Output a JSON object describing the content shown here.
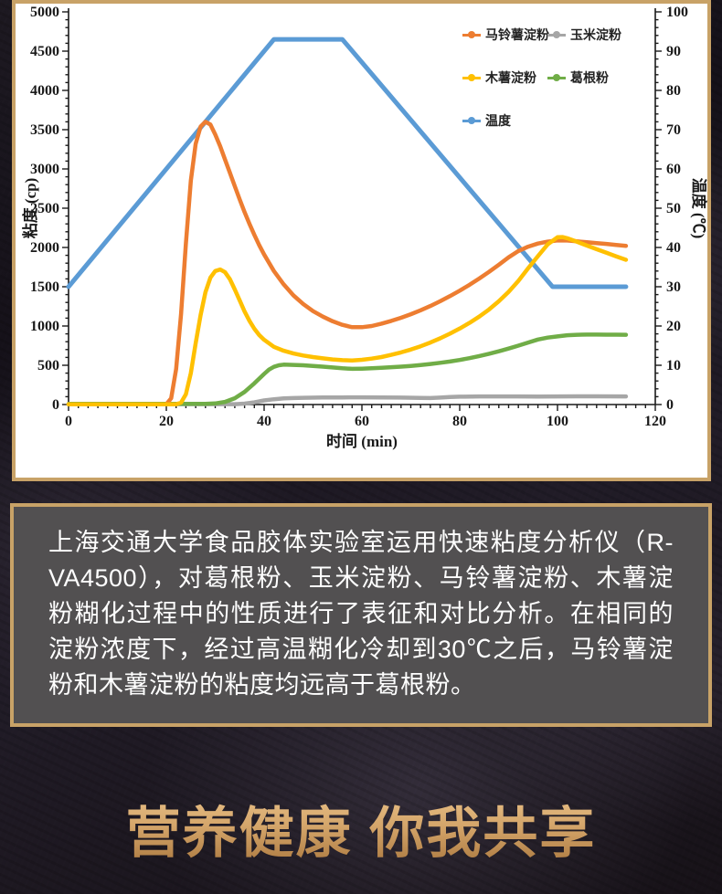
{
  "description": {
    "text": "上海交通大学食品胶体实验室运用快速粘度分析仪（R-VA4500），对葛根粉、玉米淀粉、马铃薯淀粉、木薯淀粉糊化过程中的性质进行了表征和对比分析。在相同的淀粉浓度下，经过高温糊化冷却到30℃之后，马铃薯淀粉和木薯淀粉的粘度均远高于葛根粉。"
  },
  "slogan": {
    "text": "营养健康 你我共享"
  },
  "theme": {
    "border_gold": "#c8a267",
    "textbox_bg": "#525051",
    "slogan_top": "#ecc48b",
    "slogan_mid": "#d3a469",
    "slogan_bottom": "#a9763d",
    "chart_bg": "#ffffff",
    "axis_color": "#1a1a1a"
  },
  "chart_data": {
    "type": "line",
    "title": "",
    "xlabel": "时间 (min)",
    "ylabel_left": "粘度 (cp)",
    "ylabel_right": "温度 (℃)",
    "x_range": [
      0,
      120
    ],
    "x_major": 20,
    "x_minor": 2,
    "y_left_range": [
      0,
      5000
    ],
    "y_left_major": 500,
    "y_left_minor": 100,
    "y_right_range": [
      0,
      100
    ],
    "y_right_major": 10,
    "y_right_minor": 2,
    "grid": false,
    "legend_position": "inside-top-right",
    "legend_order": [
      "马铃薯淀粉",
      "玉米淀粉",
      "木薯淀粉",
      "葛根粉",
      "温度"
    ],
    "series": [
      {
        "name": "温度",
        "axis": "right",
        "color": "#5B9BD5",
        "width": 5,
        "points": [
          [
            0,
            30
          ],
          [
            42,
            93
          ],
          [
            56,
            93
          ],
          [
            99,
            30
          ],
          [
            114,
            30
          ]
        ]
      },
      {
        "name": "玉米淀粉",
        "axis": "left",
        "color": "#A6A6A6",
        "width": 4.5,
        "points": [
          [
            0,
            5
          ],
          [
            34,
            5
          ],
          [
            36,
            12
          ],
          [
            38,
            28
          ],
          [
            40,
            52
          ],
          [
            42,
            68
          ],
          [
            44,
            78
          ],
          [
            46,
            83
          ],
          [
            48,
            86
          ],
          [
            52,
            89
          ],
          [
            56,
            91
          ],
          [
            60,
            92
          ],
          [
            64,
            91
          ],
          [
            68,
            88
          ],
          [
            72,
            84
          ],
          [
            74,
            82
          ],
          [
            76,
            88
          ],
          [
            78,
            95
          ],
          [
            80,
            100
          ],
          [
            84,
            103
          ],
          [
            88,
            104
          ],
          [
            92,
            104
          ],
          [
            96,
            101
          ],
          [
            100,
            104
          ],
          [
            104,
            105
          ],
          [
            108,
            105
          ],
          [
            114,
            104
          ]
        ]
      },
      {
        "name": "葛根粉",
        "axis": "left",
        "color": "#70AD47",
        "width": 4.5,
        "points": [
          [
            0,
            8
          ],
          [
            28,
            8
          ],
          [
            30,
            14
          ],
          [
            32,
            34
          ],
          [
            34,
            80
          ],
          [
            36,
            160
          ],
          [
            38,
            270
          ],
          [
            40,
            390
          ],
          [
            41,
            445
          ],
          [
            42,
            480
          ],
          [
            43,
            500
          ],
          [
            44,
            508
          ],
          [
            46,
            505
          ],
          [
            48,
            500
          ],
          [
            50,
            492
          ],
          [
            52,
            483
          ],
          [
            54,
            472
          ],
          [
            56,
            462
          ],
          [
            58,
            455
          ],
          [
            60,
            457
          ],
          [
            62,
            462
          ],
          [
            64,
            468
          ],
          [
            66,
            475
          ],
          [
            68,
            483
          ],
          [
            70,
            492
          ],
          [
            72,
            503
          ],
          [
            74,
            516
          ],
          [
            76,
            531
          ],
          [
            78,
            548
          ],
          [
            80,
            568
          ],
          [
            82,
            591
          ],
          [
            84,
            617
          ],
          [
            86,
            646
          ],
          [
            88,
            678
          ],
          [
            90,
            713
          ],
          [
            92,
            750
          ],
          [
            94,
            790
          ],
          [
            96,
            828
          ],
          [
            98,
            852
          ],
          [
            100,
            868
          ],
          [
            102,
            882
          ],
          [
            104,
            888
          ],
          [
            106,
            891
          ],
          [
            108,
            891
          ],
          [
            110,
            890
          ],
          [
            112,
            889
          ],
          [
            114,
            888
          ]
        ]
      },
      {
        "name": "马铃薯淀粉",
        "axis": "left",
        "color": "#ED7D31",
        "width": 4.5,
        "points": [
          [
            0,
            3
          ],
          [
            20,
            3
          ],
          [
            21,
            80
          ],
          [
            22,
            450
          ],
          [
            23,
            1150
          ],
          [
            24,
            2050
          ],
          [
            25,
            2850
          ],
          [
            26,
            3320
          ],
          [
            27,
            3540
          ],
          [
            28,
            3600
          ],
          [
            29,
            3565
          ],
          [
            30,
            3440
          ],
          [
            31,
            3290
          ],
          [
            32,
            3120
          ],
          [
            33,
            2950
          ],
          [
            34,
            2780
          ],
          [
            35,
            2610
          ],
          [
            36,
            2450
          ],
          [
            37,
            2300
          ],
          [
            38,
            2160
          ],
          [
            39,
            2030
          ],
          [
            40,
            1910
          ],
          [
            42,
            1700
          ],
          [
            44,
            1530
          ],
          [
            46,
            1390
          ],
          [
            48,
            1280
          ],
          [
            50,
            1190
          ],
          [
            52,
            1120
          ],
          [
            54,
            1060
          ],
          [
            56,
            1015
          ],
          [
            58,
            985
          ],
          [
            60,
            985
          ],
          [
            62,
            1000
          ],
          [
            64,
            1030
          ],
          [
            66,
            1065
          ],
          [
            68,
            1105
          ],
          [
            70,
            1150
          ],
          [
            72,
            1200
          ],
          [
            74,
            1255
          ],
          [
            76,
            1315
          ],
          [
            78,
            1380
          ],
          [
            80,
            1450
          ],
          [
            82,
            1525
          ],
          [
            84,
            1605
          ],
          [
            86,
            1690
          ],
          [
            88,
            1780
          ],
          [
            90,
            1875
          ],
          [
            92,
            1955
          ],
          [
            94,
            2010
          ],
          [
            96,
            2050
          ],
          [
            98,
            2075
          ],
          [
            100,
            2090
          ],
          [
            102,
            2088
          ],
          [
            104,
            2078
          ],
          [
            106,
            2066
          ],
          [
            108,
            2055
          ],
          [
            110,
            2045
          ],
          [
            112,
            2032
          ],
          [
            114,
            2020
          ]
        ]
      },
      {
        "name": "木薯淀粉",
        "axis": "left",
        "color": "#FFC000",
        "width": 4.5,
        "points": [
          [
            0,
            2
          ],
          [
            22,
            2
          ],
          [
            23,
            25
          ],
          [
            24,
            130
          ],
          [
            25,
            400
          ],
          [
            26,
            780
          ],
          [
            27,
            1140
          ],
          [
            28,
            1430
          ],
          [
            29,
            1615
          ],
          [
            30,
            1700
          ],
          [
            31,
            1720
          ],
          [
            32,
            1685
          ],
          [
            33,
            1595
          ],
          [
            34,
            1465
          ],
          [
            35,
            1325
          ],
          [
            36,
            1185
          ],
          [
            37,
            1065
          ],
          [
            38,
            965
          ],
          [
            39,
            885
          ],
          [
            40,
            825
          ],
          [
            42,
            735
          ],
          [
            44,
            685
          ],
          [
            46,
            650
          ],
          [
            48,
            625
          ],
          [
            50,
            605
          ],
          [
            52,
            588
          ],
          [
            54,
            575
          ],
          [
            56,
            565
          ],
          [
            58,
            562
          ],
          [
            60,
            570
          ],
          [
            62,
            585
          ],
          [
            64,
            605
          ],
          [
            66,
            632
          ],
          [
            68,
            664
          ],
          [
            70,
            700
          ],
          [
            72,
            742
          ],
          [
            74,
            790
          ],
          [
            76,
            843
          ],
          [
            78,
            902
          ],
          [
            80,
            968
          ],
          [
            82,
            1040
          ],
          [
            84,
            1120
          ],
          [
            86,
            1210
          ],
          [
            88,
            1315
          ],
          [
            90,
            1435
          ],
          [
            92,
            1575
          ],
          [
            94,
            1735
          ],
          [
            96,
            1890
          ],
          [
            98,
            2040
          ],
          [
            100,
            2130
          ],
          [
            101,
            2133
          ],
          [
            102,
            2118
          ],
          [
            104,
            2072
          ],
          [
            106,
            2024
          ],
          [
            108,
            1978
          ],
          [
            110,
            1932
          ],
          [
            112,
            1887
          ],
          [
            114,
            1843
          ]
        ]
      }
    ]
  }
}
